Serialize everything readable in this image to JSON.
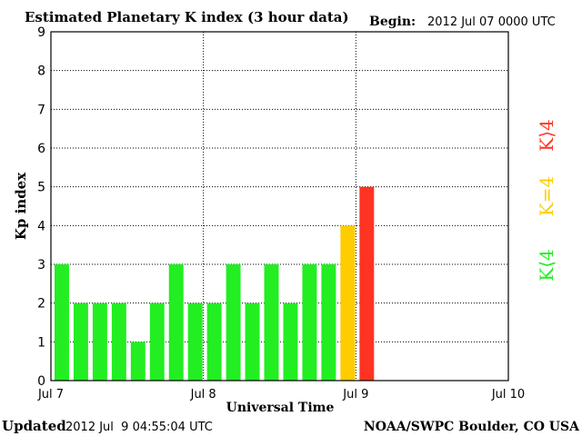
{
  "header": {
    "title": "Estimated Planetary K index (3 hour data)",
    "begin_label": "Begin:",
    "begin_value": "2012 Jul 07 0000 UTC"
  },
  "footer": {
    "updated_label": "Updated",
    "updated_value": "2012 Jul  9 04:55:04 UTC",
    "credit": "NOAA/SWPC Boulder, CO USA"
  },
  "legend": {
    "low": "K⟨4",
    "mid": "K=4",
    "high": "K⟩4"
  },
  "colors": {
    "low": "#22ee22",
    "mid": "#ffcc00",
    "high": "#ff3322",
    "grid": "#000000"
  },
  "chart_data": {
    "type": "bar",
    "title": "Estimated Planetary K index (3 hour data)",
    "xlabel": "Universal Time",
    "ylabel": "Kp index",
    "ylim": [
      0,
      9
    ],
    "yticks": [
      "0",
      "1",
      "2",
      "3",
      "4",
      "5",
      "6",
      "7",
      "8",
      "9"
    ],
    "xticks": [
      "Jul 7",
      "Jul 8",
      "Jul 9",
      "Jul 10"
    ],
    "slots": 24,
    "values": [
      3,
      2,
      2,
      2,
      1,
      2,
      3,
      2,
      2,
      3,
      2,
      3,
      2,
      3,
      3,
      4,
      5
    ],
    "grid": true
  }
}
